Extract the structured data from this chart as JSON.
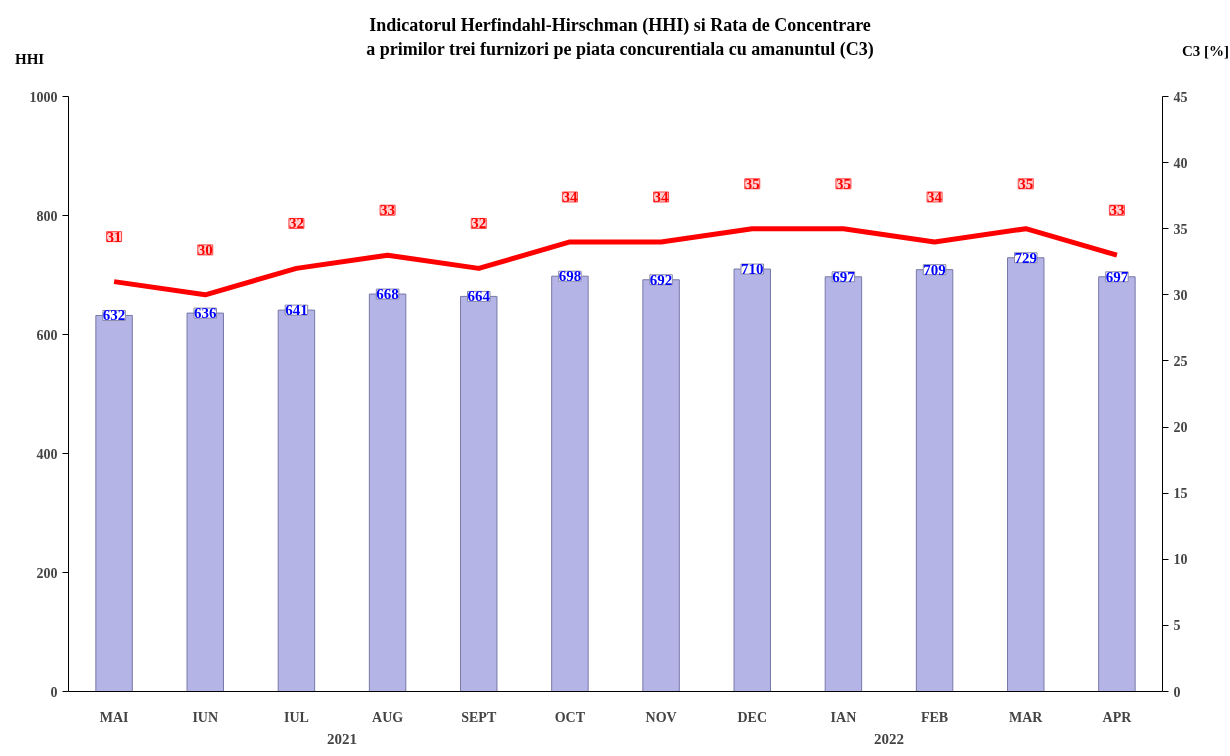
{
  "chart_data": {
    "type": "bar",
    "title": "Indicatorul Herfindahl-Hirschman (HHI) si Rata de Concentrare\na primilor trei furnizori pe piata concurentiala cu amanuntul (C3)",
    "ylabel": "HHI",
    "y2label": "C3 [%]",
    "categories": [
      "MAI",
      "IUN",
      "IUL",
      "AUG",
      "SEPT",
      "OCT",
      "NOV",
      "DEC",
      "IAN",
      "FEB",
      "MAR",
      "APR"
    ],
    "series": [
      {
        "color": "#b4b4e6",
        "values": [
          632,
          636,
          641,
          668,
          664,
          698,
          692,
          710,
          697,
          709,
          729,
          697
        ]
      },
      {
        "type": "line",
        "axis": "y2",
        "color": "#ff0000",
        "values": [
          31,
          30,
          32,
          33,
          32,
          34,
          34,
          35,
          35,
          34,
          35,
          33
        ]
      }
    ],
    "ylim": [
      0,
      1000
    ],
    "yticks": [
      0,
      200,
      400,
      600,
      800,
      1000
    ],
    "y2lim": [
      0,
      45
    ],
    "y2ticks": [
      0,
      5,
      10,
      15,
      20,
      25,
      30,
      35,
      40,
      45
    ],
    "data_labels": true,
    "grid": false,
    "marker": "none",
    "line_style": "solid",
    "annotations": [
      "2021",
      "2022"
    ]
  }
}
